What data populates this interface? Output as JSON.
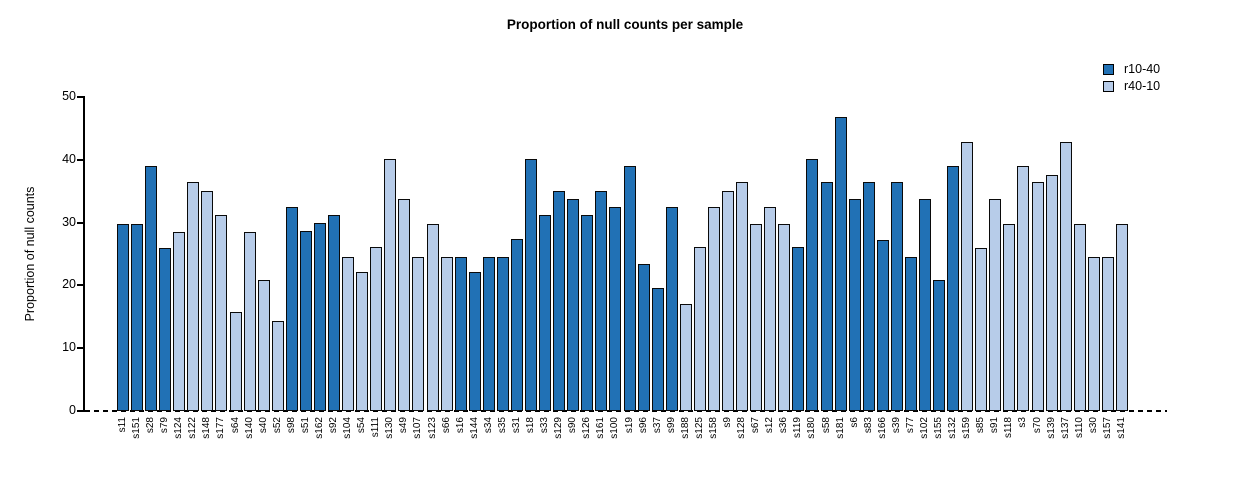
{
  "title": "Proportion of null counts per sample",
  "y_axis": {
    "label": "Proportion of null counts",
    "ticks": [
      0,
      10,
      20,
      30,
      40,
      50
    ],
    "max": 50
  },
  "legend": [
    {
      "name": "r10-40",
      "color": "#2171b5"
    },
    {
      "name": "r40-10",
      "color": "#b7cce9"
    }
  ],
  "chart_data": {
    "type": "bar",
    "title": "Proportion of null counts per sample",
    "xlabel": "",
    "ylabel": "Proportion of null counts",
    "ylim": [
      0,
      50
    ],
    "grid": false,
    "legend_position": "top-right",
    "baseline_style": "dashed",
    "series_colors": {
      "r10-40": "#2171b5",
      "r40-10": "#b7cce9"
    },
    "categories": [
      "s11",
      "s151",
      "s28",
      "s79",
      "s124",
      "s122",
      "s148",
      "s177",
      "s64",
      "s140",
      "s40",
      "s52",
      "s98",
      "s51",
      "s162",
      "s92",
      "s104",
      "s54",
      "s111",
      "s130",
      "s49",
      "s107",
      "s123",
      "s66",
      "s16",
      "s144",
      "s34",
      "s35",
      "s31",
      "s18",
      "s33",
      "s129",
      "s90",
      "s126",
      "s161",
      "s100",
      "s19",
      "s96",
      "s37",
      "s99",
      "s188",
      "s125",
      "s158",
      "s9",
      "s128",
      "s67",
      "s12",
      "s36",
      "s119",
      "s180",
      "s58",
      "s181",
      "s6",
      "s83",
      "s166",
      "s39",
      "s77",
      "s102",
      "s155",
      "s132",
      "s159",
      "s85",
      "s91",
      "s118",
      "s3",
      "s70",
      "s139",
      "s137",
      "s110",
      "s30",
      "s157",
      "s141"
    ],
    "values": [
      29.8,
      29.8,
      39.0,
      26.0,
      28.5,
      36.4,
      35.0,
      31.2,
      15.7,
      28.5,
      20.8,
      14.4,
      32.5,
      28.7,
      30.0,
      31.2,
      24.6,
      22.2,
      26.1,
      40.2,
      33.8,
      24.6,
      29.8,
      24.6,
      24.6,
      22.1,
      24.6,
      24.6,
      27.4,
      40.2,
      31.2,
      35.0,
      33.8,
      31.2,
      35.0,
      32.5,
      39.0,
      23.4,
      19.6,
      32.5,
      17.0,
      26.1,
      32.5,
      35.0,
      36.4,
      29.8,
      32.5,
      29.8,
      26.1,
      40.2,
      36.4,
      46.8,
      33.8,
      36.4,
      27.3,
      36.4,
      24.6,
      33.8,
      20.9,
      39.0,
      42.8,
      26.0,
      33.8,
      29.8,
      39.0,
      36.4,
      37.6,
      42.8,
      29.8,
      24.6,
      24.6,
      29.8
    ],
    "series_of_bar": [
      "r10-40",
      "r10-40",
      "r10-40",
      "r10-40",
      "r40-10",
      "r40-10",
      "r40-10",
      "r40-10",
      "r40-10",
      "r40-10",
      "r40-10",
      "r40-10",
      "r10-40",
      "r10-40",
      "r10-40",
      "r10-40",
      "r40-10",
      "r40-10",
      "r40-10",
      "r40-10",
      "r40-10",
      "r40-10",
      "r40-10",
      "r40-10",
      "r10-40",
      "r10-40",
      "r10-40",
      "r10-40",
      "r10-40",
      "r10-40",
      "r10-40",
      "r10-40",
      "r10-40",
      "r10-40",
      "r10-40",
      "r10-40",
      "r10-40",
      "r10-40",
      "r10-40",
      "r10-40",
      "r40-10",
      "r40-10",
      "r40-10",
      "r40-10",
      "r40-10",
      "r40-10",
      "r40-10",
      "r40-10",
      "r10-40",
      "r10-40",
      "r10-40",
      "r10-40",
      "r10-40",
      "r10-40",
      "r10-40",
      "r10-40",
      "r10-40",
      "r10-40",
      "r10-40",
      "r10-40",
      "r40-10",
      "r40-10",
      "r40-10",
      "r40-10",
      "r40-10",
      "r40-10",
      "r40-10",
      "r40-10",
      "r40-10",
      "r40-10",
      "r40-10",
      "r40-10"
    ]
  }
}
